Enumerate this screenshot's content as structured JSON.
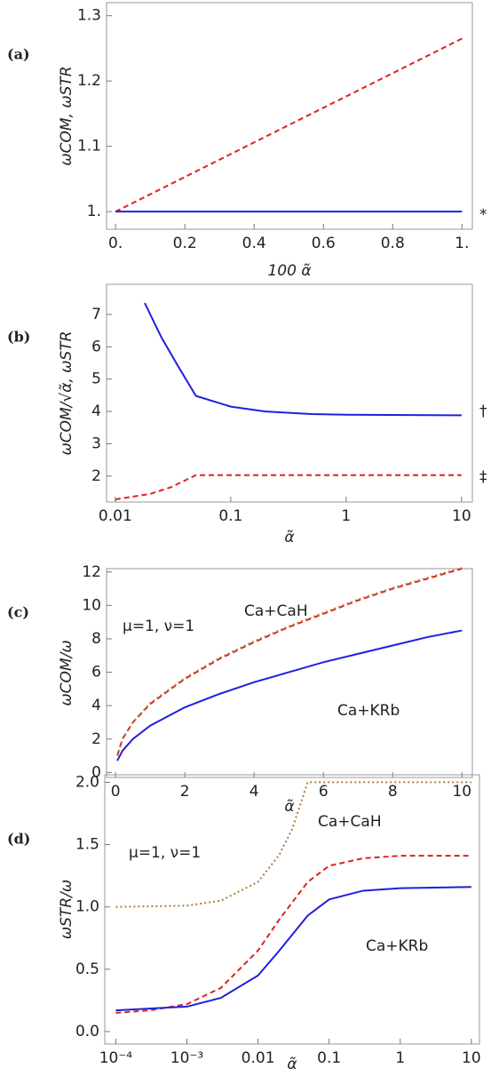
{
  "chart_data": [
    {
      "type": "line",
      "panel_label": "(a)",
      "xlabel": "100 α̃",
      "ylabel": "ωCOM, ωSTR",
      "xlim": [
        -0.026,
        1.03
      ],
      "ylim": [
        0.973,
        1.32
      ],
      "xticks": [
        {
          "value": 0,
          "label": "0."
        },
        0.2,
        0.4,
        0.6,
        0.8,
        {
          "value": 1,
          "label": "1."
        }
      ],
      "yticks": [
        {
          "value": 1,
          "label": "1."
        },
        1.1,
        1.2,
        1.3
      ],
      "series": [
        {
          "color": "#dd2222",
          "dash": "dashed",
          "x": [
            0,
            1
          ],
          "values": [
            1,
            1.265
          ]
        },
        {
          "color": "#1f1fe0",
          "dash": "solid",
          "x": [
            0,
            1
          ],
          "values": [
            1,
            1
          ],
          "annotation": "*"
        }
      ]
    },
    {
      "type": "line",
      "panel_label": "(b)",
      "xlabel": "α̃",
      "ylabel": "ωCOM/√α̃, ωSTR",
      "xscale": "log",
      "xlim": [
        0.0084,
        12.4
      ],
      "ylim": [
        1.2,
        7.93
      ],
      "xticks": [
        0.01,
        0.1,
        1,
        10
      ],
      "yticks": [
        2,
        3,
        4,
        5,
        6,
        7
      ],
      "series": [
        {
          "color": "#1f1fe0",
          "dash": "solid",
          "x": [
            0.018,
            0.025,
            0.035,
            0.05,
            0.1,
            0.2,
            0.5,
            1,
            10
          ],
          "values": [
            7.35,
            6.3,
            5.4,
            4.48,
            4.15,
            4.0,
            3.92,
            3.9,
            3.88
          ],
          "annotation": "†"
        },
        {
          "color": "#dd2222",
          "dash": "dashed",
          "x": [
            0.01,
            0.02,
            0.03,
            0.05,
            10
          ],
          "values": [
            1.28,
            1.45,
            1.65,
            2.03,
            2.03
          ],
          "annotation": "‡"
        }
      ]
    },
    {
      "type": "line",
      "panel_label": "(c)",
      "xlabel": "α̃",
      "ylabel": "ωCOM/ω",
      "xlim": [
        -0.26,
        10.3
      ],
      "ylim": [
        -0.3,
        12.2
      ],
      "xticks": [
        0,
        2,
        4,
        6,
        8,
        10
      ],
      "yticks": [
        0,
        2,
        4,
        6,
        8,
        10,
        12
      ],
      "series": [
        {
          "name": "Ca+CaH",
          "color": "#dd2222",
          "dash": "dashed",
          "x": [
            0.05,
            0.2,
            0.5,
            1,
            2,
            3,
            4,
            5,
            6,
            7,
            8,
            9,
            10
          ],
          "values": [
            1.0,
            2.0,
            3.0,
            4.1,
            5.6,
            6.8,
            7.8,
            8.7,
            9.5,
            10.3,
            11.0,
            11.6,
            12.2
          ]
        },
        {
          "name": "μ=1, ν=1",
          "color": "#b07a3a",
          "dash": "dotted",
          "x": [
            0.05,
            0.2,
            0.5,
            1,
            2,
            3,
            4,
            5,
            6,
            7,
            8,
            9,
            10
          ],
          "values": [
            1.0,
            2.0,
            3.0,
            4.15,
            5.65,
            6.85,
            7.85,
            8.75,
            9.55,
            10.35,
            11.05,
            11.65,
            12.25
          ]
        },
        {
          "name": "Ca+KRb",
          "color": "#1f1fe0",
          "dash": "solid",
          "x": [
            0.05,
            0.2,
            0.5,
            1,
            2,
            3,
            4,
            5,
            6,
            7,
            8,
            9,
            10
          ],
          "values": [
            0.7,
            1.3,
            2.0,
            2.8,
            3.9,
            4.7,
            5.4,
            6.0,
            6.6,
            7.1,
            7.6,
            8.1,
            8.5
          ]
        }
      ]
    },
    {
      "type": "line",
      "panel_label": "(d)",
      "xlabel": "α̃",
      "ylabel": "ωSTR/ω",
      "xscale": "log",
      "xlim": [
        7e-05,
        13
      ],
      "ylim": [
        -0.1,
        2.06
      ],
      "xticks": [
        {
          "value": 0.0001,
          "label": "10⁻⁴"
        },
        {
          "value": 0.001,
          "label": "10⁻³"
        },
        0.01,
        0.1,
        1,
        10
      ],
      "yticks": [
        {
          "value": 0,
          "label": "0.0"
        },
        0.5,
        {
          "value": 1,
          "label": "1.0"
        },
        1.5,
        {
          "value": 2,
          "label": "2.0"
        }
      ],
      "series": [
        {
          "name": "μ=1, ν=1",
          "color": "#b07a3a",
          "dash": "dotted",
          "x": [
            0.0001,
            0.001,
            0.003,
            0.01,
            0.02,
            0.03,
            0.05,
            10
          ],
          "values": [
            1.0,
            1.01,
            1.05,
            1.2,
            1.42,
            1.62,
            2.0,
            2.0
          ]
        },
        {
          "name": "Ca+CaH",
          "color": "#dd2222",
          "dash": "dashed",
          "x": [
            0.0001,
            0.0003,
            0.001,
            0.003,
            0.01,
            0.02,
            0.05,
            0.1,
            0.3,
            1,
            10
          ],
          "values": [
            0.15,
            0.17,
            0.22,
            0.35,
            0.65,
            0.9,
            1.2,
            1.33,
            1.39,
            1.41,
            1.41
          ]
        },
        {
          "name": "Ca+KRb",
          "color": "#1f1fe0",
          "dash": "solid",
          "x": [
            0.0001,
            0.001,
            0.003,
            0.01,
            0.02,
            0.05,
            0.1,
            0.3,
            1,
            10
          ],
          "values": [
            0.17,
            0.2,
            0.27,
            0.45,
            0.65,
            0.93,
            1.06,
            1.13,
            1.15,
            1.16
          ]
        }
      ]
    }
  ]
}
